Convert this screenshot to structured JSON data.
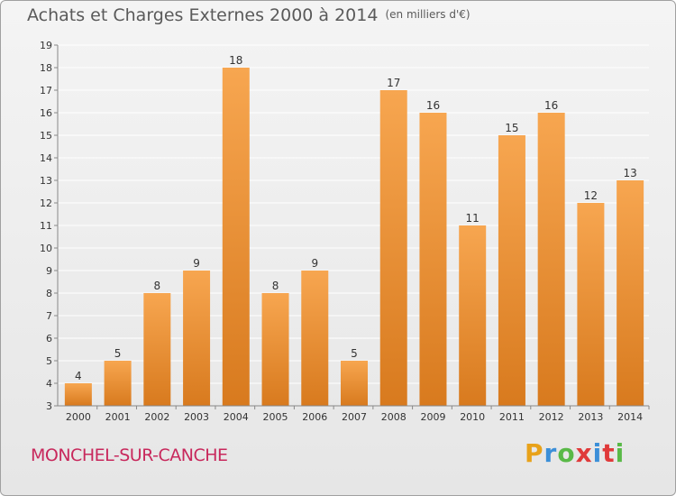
{
  "title": "Achats et Charges Externes 2000 à 2014",
  "unit_note": "(en milliers d'€)",
  "commune": "MONCHEL-SUR-CANCHE",
  "brand": {
    "letters": [
      "P",
      "r",
      "o",
      "x",
      "i",
      "t",
      "i"
    ],
    "colors": [
      "#e8a21a",
      "#3b8fd8",
      "#59b947",
      "#e03a3a",
      "#3b8fd8",
      "#e03a3a",
      "#59b947"
    ]
  },
  "colors": {
    "bar_top": "#f7a650",
    "bar_bottom": "#d87a1e",
    "grid": "#ffffff",
    "axis_text": "#333333"
  },
  "chart_data": {
    "type": "bar",
    "categories": [
      "2000",
      "2001",
      "2002",
      "2003",
      "2004",
      "2005",
      "2006",
      "2007",
      "2008",
      "2009",
      "2010",
      "2011",
      "2012",
      "2013",
      "2014"
    ],
    "values": [
      4,
      5,
      8,
      9,
      18,
      8,
      9,
      5,
      17,
      16,
      11,
      15,
      16,
      12,
      13
    ],
    "title": "Achats et Charges Externes 2000 à 2014",
    "ylim": [
      3,
      19
    ],
    "yticks": [
      3,
      4,
      5,
      6,
      7,
      8,
      9,
      10,
      11,
      12,
      13,
      14,
      15,
      16,
      17,
      18,
      19
    ],
    "grid": true,
    "legend": "none"
  }
}
